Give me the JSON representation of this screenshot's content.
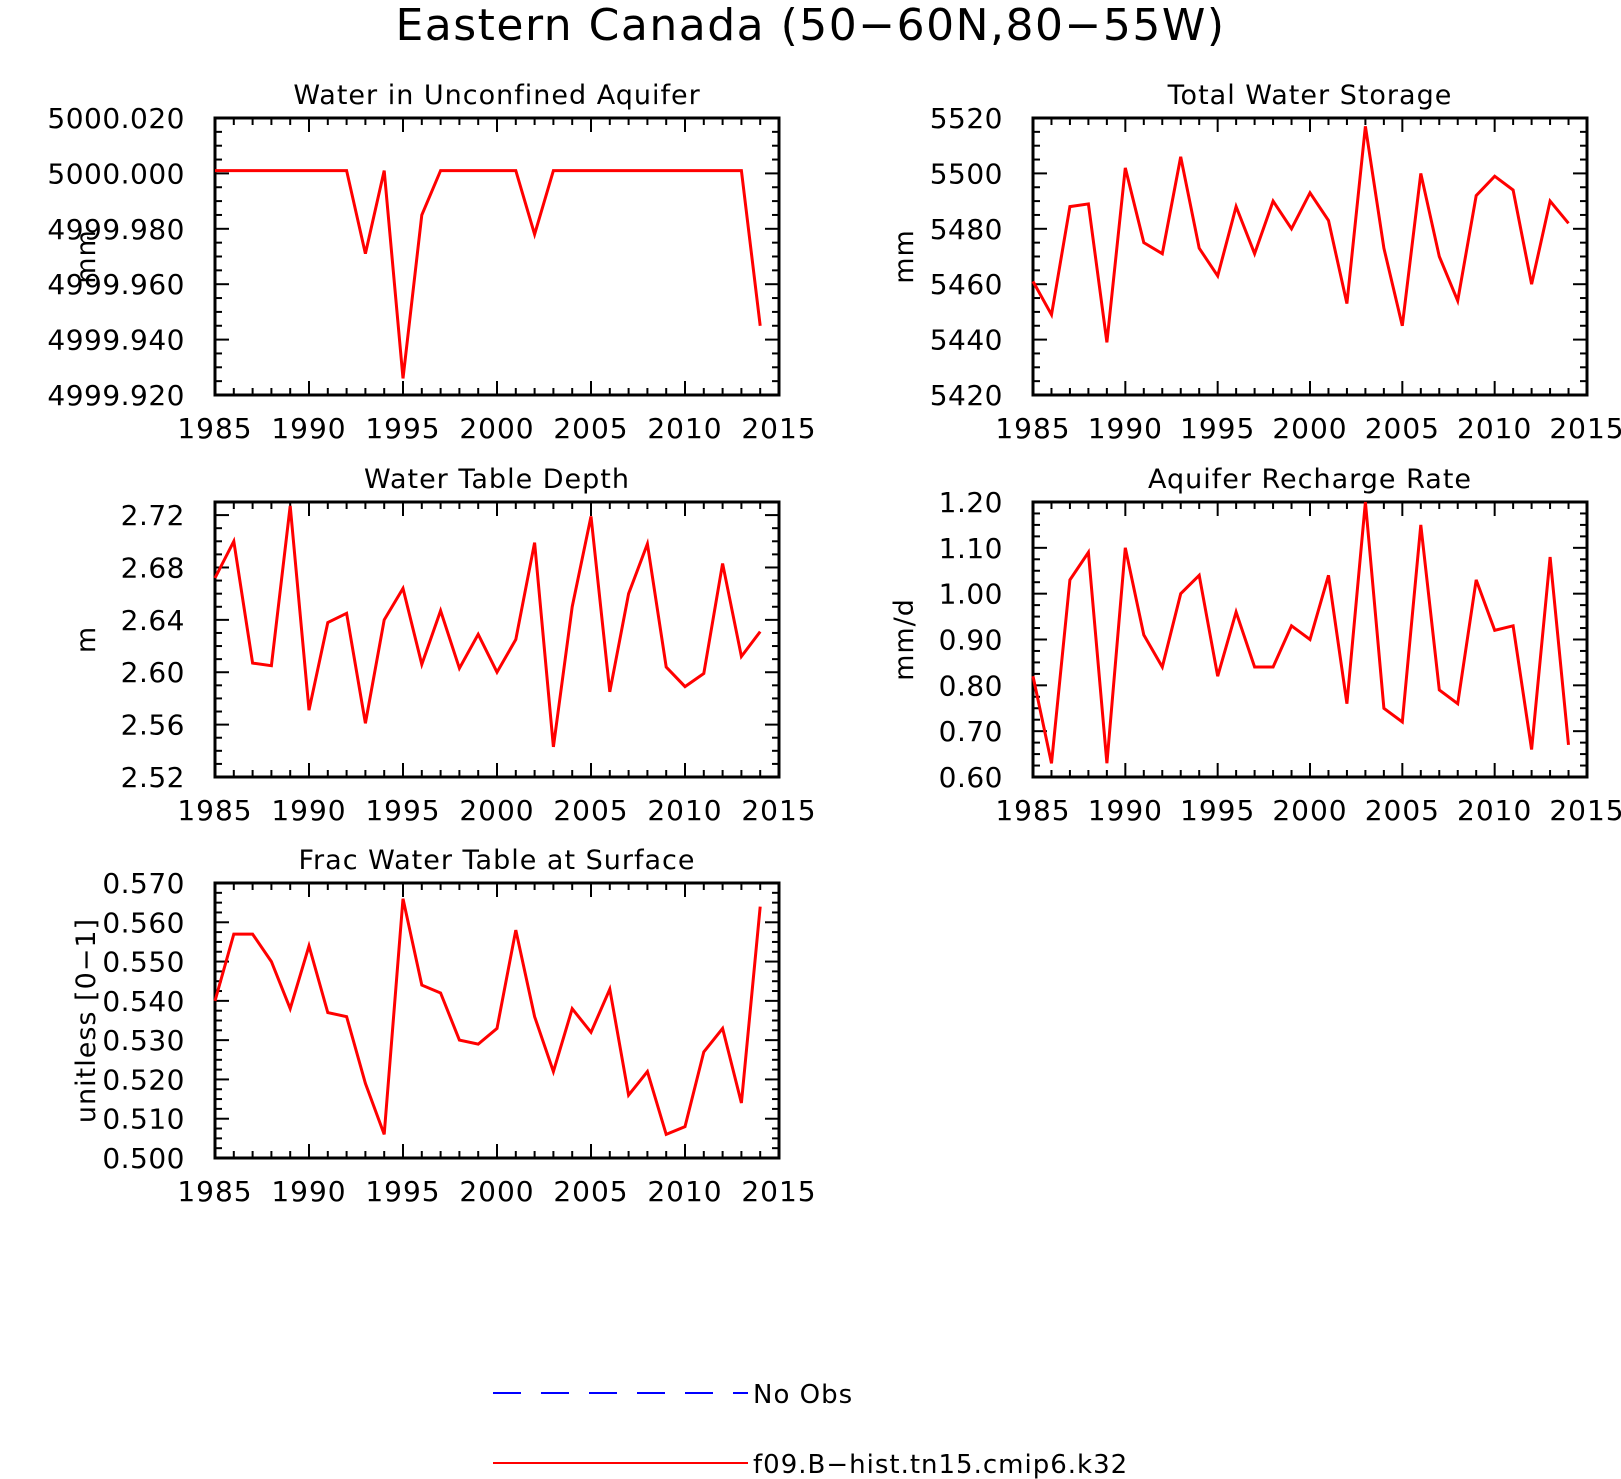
{
  "page": {
    "title": "Eastern Canada (50−60N,80−55W)"
  },
  "colors": {
    "model": "#ff0000",
    "obs": "#0000ff",
    "axes": "#000000"
  },
  "legend": {
    "items": [
      {
        "label": "No Obs",
        "color": "#0000ff",
        "style": "dashed"
      },
      {
        "label": "f09.B−hist.tn15.cmip6.k32",
        "color": "#ff0000",
        "style": "solid"
      }
    ]
  },
  "chart_data": [
    {
      "type": "line",
      "title": "Water in Unconfined Aquifer",
      "ylabel": "mm",
      "xlim": [
        1985,
        2015
      ],
      "xticks": [
        1985,
        1990,
        1995,
        2000,
        2005,
        2010,
        2015
      ],
      "ylim": [
        4999.92,
        5000.02
      ],
      "yticks": [
        "4999.920",
        "4999.940",
        "4999.960",
        "4999.980",
        "5000.000",
        "5000.020"
      ],
      "x": [
        1985,
        1986,
        1987,
        1988,
        1989,
        1990,
        1991,
        1992,
        1993,
        1994,
        1995,
        1996,
        1997,
        1998,
        1999,
        2000,
        2001,
        2002,
        2003,
        2004,
        2005,
        2006,
        2007,
        2008,
        2009,
        2010,
        2011,
        2012,
        2013,
        2014
      ],
      "series": [
        {
          "name": "f09.B−hist.tn15.cmip6.k32",
          "values": [
            5000.001,
            5000.001,
            5000.001,
            5000.001,
            5000.001,
            5000.001,
            5000.001,
            5000.001,
            4999.971,
            5000.001,
            4999.926,
            4999.985,
            5000.001,
            5000.001,
            5000.001,
            5000.001,
            5000.001,
            4999.978,
            5000.001,
            5000.001,
            5000.001,
            5000.001,
            5000.001,
            5000.001,
            5000.001,
            5000.001,
            5000.001,
            5000.001,
            5000.001,
            4999.945
          ]
        }
      ]
    },
    {
      "type": "line",
      "title": "Total Water Storage",
      "ylabel": "mm",
      "xlim": [
        1985,
        2015
      ],
      "xticks": [
        1985,
        1990,
        1995,
        2000,
        2005,
        2010,
        2015
      ],
      "ylim": [
        5420,
        5520
      ],
      "yticks": [
        "5420",
        "5440",
        "5460",
        "5480",
        "5500",
        "5520"
      ],
      "x": [
        1985,
        1986,
        1987,
        1988,
        1989,
        1990,
        1991,
        1992,
        1993,
        1994,
        1995,
        1996,
        1997,
        1998,
        1999,
        2000,
        2001,
        2002,
        2003,
        2004,
        2005,
        2006,
        2007,
        2008,
        2009,
        2010,
        2011,
        2012,
        2013,
        2014
      ],
      "series": [
        {
          "name": "f09.B−hist.tn15.cmip6.k32",
          "values": [
            5461,
            5449,
            5488,
            5489,
            5439,
            5502,
            5475,
            5471,
            5506,
            5473,
            5463,
            5488,
            5471,
            5490,
            5480,
            5493,
            5483,
            5453,
            5517,
            5473,
            5445,
            5500,
            5470,
            5454,
            5492,
            5499,
            5494,
            5460,
            5490,
            5482
          ]
        }
      ]
    },
    {
      "type": "line",
      "title": "Water Table Depth",
      "ylabel": "m",
      "xlim": [
        1985,
        2015
      ],
      "xticks": [
        1985,
        1990,
        1995,
        2000,
        2005,
        2010,
        2015
      ],
      "ylim": [
        2.52,
        2.73
      ],
      "yticks": [
        "2.52",
        "2.56",
        "2.60",
        "2.64",
        "2.68",
        "2.72"
      ],
      "x": [
        1985,
        1986,
        1987,
        1988,
        1989,
        1990,
        1991,
        1992,
        1993,
        1994,
        1995,
        1996,
        1997,
        1998,
        1999,
        2000,
        2001,
        2002,
        2003,
        2004,
        2005,
        2006,
        2007,
        2008,
        2009,
        2010,
        2011,
        2012,
        2013,
        2014
      ],
      "series": [
        {
          "name": "f09.B−hist.tn15.cmip6.k32",
          "values": [
            2.672,
            2.7,
            2.607,
            2.605,
            2.727,
            2.571,
            2.638,
            2.645,
            2.561,
            2.64,
            2.664,
            2.606,
            2.647,
            2.603,
            2.629,
            2.6,
            2.625,
            2.699,
            2.543,
            2.65,
            2.719,
            2.585,
            2.66,
            2.698,
            2.604,
            2.589,
            2.599,
            2.683,
            2.612,
            2.631
          ]
        }
      ]
    },
    {
      "type": "line",
      "title": "Aquifer Recharge Rate",
      "ylabel": "mm/d",
      "xlim": [
        1985,
        2015
      ],
      "xticks": [
        1985,
        1990,
        1995,
        2000,
        2005,
        2010,
        2015
      ],
      "ylim": [
        0.6,
        1.2
      ],
      "yticks": [
        "0.60",
        "0.70",
        "0.80",
        "0.90",
        "1.00",
        "1.10",
        "1.20"
      ],
      "x": [
        1985,
        1986,
        1987,
        1988,
        1989,
        1990,
        1991,
        1992,
        1993,
        1994,
        1995,
        1996,
        1997,
        1998,
        1999,
        2000,
        2001,
        2002,
        2003,
        2004,
        2005,
        2006,
        2007,
        2008,
        2009,
        2010,
        2011,
        2012,
        2013,
        2014
      ],
      "series": [
        {
          "name": "f09.B−hist.tn15.cmip6.k32",
          "values": [
            0.82,
            0.63,
            1.03,
            1.09,
            0.63,
            1.1,
            0.91,
            0.84,
            1.0,
            1.04,
            0.82,
            0.96,
            0.84,
            0.84,
            0.93,
            0.9,
            1.04,
            0.76,
            1.2,
            0.75,
            0.72,
            1.15,
            0.79,
            0.76,
            1.03,
            0.92,
            0.93,
            0.66,
            1.08,
            0.67
          ]
        }
      ]
    },
    {
      "type": "line",
      "title": "Frac Water Table at Surface",
      "ylabel": "unitless [0−1]",
      "xlim": [
        1985,
        2015
      ],
      "xticks": [
        1985,
        1990,
        1995,
        2000,
        2005,
        2010,
        2015
      ],
      "ylim": [
        0.5,
        0.57
      ],
      "yticks": [
        "0.500",
        "0.510",
        "0.520",
        "0.530",
        "0.540",
        "0.550",
        "0.560",
        "0.570"
      ],
      "x": [
        1985,
        1986,
        1987,
        1988,
        1989,
        1990,
        1991,
        1992,
        1993,
        1994,
        1995,
        1996,
        1997,
        1998,
        1999,
        2000,
        2001,
        2002,
        2003,
        2004,
        2005,
        2006,
        2007,
        2008,
        2009,
        2010,
        2011,
        2012,
        2013,
        2014
      ],
      "series": [
        {
          "name": "f09.B−hist.tn15.cmip6.k32",
          "values": [
            0.54,
            0.557,
            0.557,
            0.55,
            0.538,
            0.554,
            0.537,
            0.536,
            0.519,
            0.506,
            0.566,
            0.544,
            0.542,
            0.53,
            0.529,
            0.533,
            0.558,
            0.536,
            0.522,
            0.538,
            0.532,
            0.543,
            0.516,
            0.522,
            0.506,
            0.508,
            0.527,
            0.533,
            0.514,
            0.564
          ]
        }
      ]
    }
  ]
}
